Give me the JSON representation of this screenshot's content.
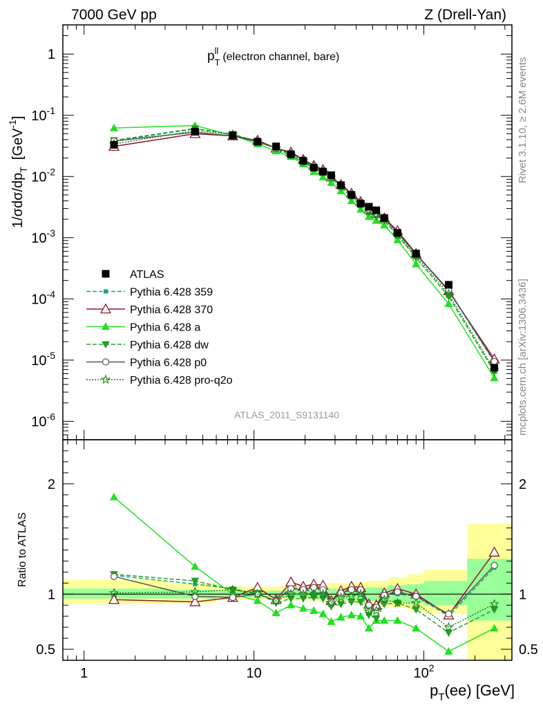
{
  "header": {
    "left": "7000 GeV pp",
    "right": "Z (Drell-Yan)"
  },
  "side_labels": {
    "rivet": "Rivet 3.1.10, ≥ 2.6M events",
    "mcplots": "mcplots.cern.ch [arXiv:1306.3436]"
  },
  "colors": {
    "data": "#000000",
    "p359": "#1aa57a",
    "p370": "#8b1a2a",
    "pa": "#22e022",
    "pdw": "#22a022",
    "pp0": "#555555",
    "pq2o": "#148414",
    "band_yellow": "#ffff99",
    "band_green": "#99ff99"
  },
  "chart_data": [
    {
      "type": "line",
      "title": "p_T^ll (electron channel, bare)",
      "title_parts": {
        "main": "p",
        "sup": "ll",
        "sub": "T",
        "rest": "(electron channel, bare)"
      },
      "ylabel": "1/σdσ/dp_T [GeV^-1]",
      "ylabel_parts": {
        "a": "1/σdσ/dp",
        "sub": "T",
        "b": "[GeV",
        "sup": "-1",
        "c": "]"
      },
      "watermark": "ATLAS_2011_S9131140",
      "x_scale": "log",
      "y_scale": "log",
      "xlim": [
        0.75,
        330
      ],
      "ylim": [
        5e-07,
        3
      ],
      "y_tick_labels": [
        "10^-6",
        "10^-5",
        "10^-4",
        "10^-3",
        "10^-2",
        "10^-1",
        "1"
      ],
      "legend_position": "left-middle",
      "legend": [
        "ATLAS",
        "Pythia 6.428 359",
        "Pythia 6.428 370",
        "Pythia 6.428 a",
        "Pythia 6.428 dw",
        "Pythia 6.428 p0",
        "Pythia 6.428 pro-q2o"
      ],
      "x": [
        1.5,
        4.5,
        7.5,
        10.5,
        13.5,
        16.5,
        19.5,
        22.5,
        25.5,
        28.5,
        32.5,
        37.5,
        42.5,
        47.5,
        52.5,
        58.5,
        70,
        90,
        140,
        260
      ],
      "series": [
        {
          "name": "ATLAS",
          "values": [
            0.033,
            0.054,
            0.047,
            0.037,
            0.031,
            0.023,
            0.018,
            0.014,
            0.012,
            0.0105,
            0.0072,
            0.005,
            0.0036,
            0.0032,
            0.0028,
            0.0021,
            0.0012,
            0.00055,
            0.00017,
            7.5e-06
          ]
        },
        {
          "name": "Pythia 6.428 359",
          "values": [
            0.038,
            0.06,
            0.049,
            0.037,
            0.029,
            0.024,
            0.0185,
            0.014,
            0.012,
            0.0098,
            0.0074,
            0.0051,
            0.0036,
            0.0028,
            0.0024,
            0.0021,
            0.0012,
            0.00054,
            0.000135,
            9.3e-06
          ]
        },
        {
          "name": "Pythia 6.428 370",
          "values": [
            0.031,
            0.05,
            0.046,
            0.039,
            0.029,
            0.025,
            0.019,
            0.0152,
            0.013,
            0.0098,
            0.0074,
            0.0053,
            0.0039,
            0.0029,
            0.0025,
            0.0021,
            0.0013,
            0.00055,
            0.000135,
            1.04e-05
          ]
        },
        {
          "name": "Pythia 6.428 a",
          "values": [
            0.062,
            0.068,
            0.047,
            0.034,
            0.026,
            0.021,
            0.016,
            0.012,
            0.0098,
            0.0079,
            0.0058,
            0.004,
            0.0029,
            0.0022,
            0.0019,
            0.0016,
            0.00092,
            0.00037,
            8.3e-05,
            5.1e-06
          ]
        },
        {
          "name": "Pythia 6.428 dw",
          "values": [
            0.039,
            0.061,
            0.049,
            0.037,
            0.029,
            0.022,
            0.017,
            0.0136,
            0.0115,
            0.0094,
            0.0066,
            0.0046,
            0.0034,
            0.0026,
            0.0022,
            0.0019,
            0.0011,
            0.00047,
            0.00011,
            6.4e-06
          ]
        },
        {
          "name": "Pythia 6.428 p0",
          "values": [
            0.038,
            0.053,
            0.046,
            0.037,
            0.029,
            0.024,
            0.019,
            0.015,
            0.0125,
            0.0098,
            0.0072,
            0.0052,
            0.0038,
            0.0029,
            0.0025,
            0.0021,
            0.0012,
            0.00054,
            0.00014,
            9.5e-06
          ]
        },
        {
          "name": "Pythia 6.428 pro-q2o",
          "values": [
            0.034,
            0.056,
            0.049,
            0.037,
            0.029,
            0.023,
            0.018,
            0.014,
            0.012,
            0.0096,
            0.007,
            0.0049,
            0.0036,
            0.0027,
            0.0024,
            0.002,
            0.0011,
            0.00051,
            0.00012,
            6.9e-06
          ]
        }
      ]
    },
    {
      "type": "line",
      "ylabel": "Ratio to ATLAS",
      "xlabel": "p_T(ee) [GeV]",
      "xlabel_parts": {
        "a": "p",
        "sub": "T",
        "b": "(ee) [GeV]"
      },
      "x_scale": "log",
      "xlim": [
        0.75,
        330
      ],
      "ylim": [
        0.4,
        2.4
      ],
      "y_ticks": [
        0.5,
        1,
        2
      ],
      "y_tick_labels": [
        "0.5",
        "1",
        "2"
      ],
      "x_tick_labels": [
        "1",
        "10",
        "10^2"
      ],
      "reference_line": 1,
      "x": [
        1.5,
        4.5,
        7.5,
        10.5,
        13.5,
        16.5,
        19.5,
        22.5,
        25.5,
        28.5,
        32.5,
        37.5,
        42.5,
        47.5,
        52.5,
        58.5,
        70,
        90,
        140,
        260
      ],
      "bins": [
        [
          0.75,
          3
        ],
        [
          3,
          6
        ],
        [
          6,
          9
        ],
        [
          9,
          12
        ],
        [
          12,
          15
        ],
        [
          15,
          18
        ],
        [
          18,
          21
        ],
        [
          21,
          24
        ],
        [
          24,
          27
        ],
        [
          27,
          30
        ],
        [
          30,
          35
        ],
        [
          35,
          40
        ],
        [
          40,
          45
        ],
        [
          45,
          50
        ],
        [
          50,
          55
        ],
        [
          55,
          62
        ],
        [
          62,
          80
        ],
        [
          80,
          100
        ],
        [
          100,
          180
        ],
        [
          180,
          330
        ]
      ],
      "band_yellow": [
        [
          0.91,
          1.13
        ],
        [
          0.92,
          1.1
        ],
        [
          0.95,
          1.07
        ],
        [
          0.95,
          1.07
        ],
        [
          0.95,
          1.07
        ],
        [
          0.95,
          1.08
        ],
        [
          0.95,
          1.08
        ],
        [
          0.94,
          1.08
        ],
        [
          0.94,
          1.09
        ],
        [
          0.93,
          1.1
        ],
        [
          0.93,
          1.1
        ],
        [
          0.93,
          1.1
        ],
        [
          0.91,
          1.11
        ],
        [
          0.9,
          1.12
        ],
        [
          0.9,
          1.12
        ],
        [
          0.9,
          1.12
        ],
        [
          0.88,
          1.15
        ],
        [
          0.85,
          1.18
        ],
        [
          0.82,
          1.22
        ],
        [
          0.4,
          1.64
        ]
      ],
      "band_green": [
        [
          0.96,
          1.05
        ],
        [
          0.96,
          1.04
        ],
        [
          0.97,
          1.03
        ],
        [
          0.97,
          1.03
        ],
        [
          0.97,
          1.03
        ],
        [
          0.97,
          1.04
        ],
        [
          0.97,
          1.04
        ],
        [
          0.96,
          1.04
        ],
        [
          0.96,
          1.04
        ],
        [
          0.96,
          1.05
        ],
        [
          0.95,
          1.05
        ],
        [
          0.95,
          1.05
        ],
        [
          0.95,
          1.05
        ],
        [
          0.94,
          1.06
        ],
        [
          0.94,
          1.06
        ],
        [
          0.94,
          1.06
        ],
        [
          0.93,
          1.08
        ],
        [
          0.92,
          1.09
        ],
        [
          0.9,
          1.12
        ],
        [
          0.76,
          1.32
        ]
      ],
      "series": [
        {
          "name": "Pythia 6.428 359",
          "values": [
            1.17,
            1.09,
            1.05,
            1.0,
            0.94,
            1.06,
            1.05,
            1.01,
            1.01,
            0.93,
            1.02,
            1.03,
            1.01,
            0.89,
            0.87,
            1.02,
            1.0,
            0.98,
            0.8,
            1.24
          ]
        },
        {
          "name": "Pythia 6.428 370",
          "values": [
            0.95,
            0.93,
            0.97,
            1.06,
            0.95,
            1.11,
            1.07,
            1.09,
            1.08,
            0.94,
            1.03,
            1.07,
            1.06,
            0.91,
            0.9,
            1.01,
            1.05,
            1.0,
            0.81,
            1.38
          ]
        },
        {
          "name": "Pythia 6.428 a",
          "values": [
            1.88,
            1.25,
            1.0,
            0.94,
            0.83,
            0.9,
            0.87,
            0.85,
            0.82,
            0.75,
            0.79,
            0.81,
            0.8,
            0.69,
            0.76,
            0.76,
            0.76,
            0.69,
            0.48,
            0.69
          ]
        },
        {
          "name": "Pythia 6.428 dw",
          "values": [
            1.18,
            1.12,
            1.04,
            1.01,
            0.92,
            0.96,
            0.96,
            0.97,
            0.96,
            0.89,
            0.91,
            0.93,
            0.93,
            0.81,
            0.78,
            0.91,
            0.92,
            0.86,
            0.65,
            0.86
          ]
        },
        {
          "name": "Pythia 6.428 p0",
          "values": [
            1.16,
            0.98,
            0.97,
            1.0,
            0.94,
            1.05,
            1.04,
            1.06,
            1.04,
            0.93,
            1.01,
            1.04,
            1.04,
            0.9,
            0.88,
            0.99,
            1.02,
            0.98,
            0.82,
            1.26
          ]
        },
        {
          "name": "Pythia 6.428 pro-q2o",
          "values": [
            1.01,
            1.02,
            1.04,
            1.0,
            0.94,
            1.0,
            1.0,
            1.0,
            1.0,
            0.92,
            0.97,
            0.98,
            1.0,
            0.84,
            0.85,
            0.95,
            0.92,
            0.92,
            0.7,
            0.91
          ]
        }
      ]
    }
  ]
}
